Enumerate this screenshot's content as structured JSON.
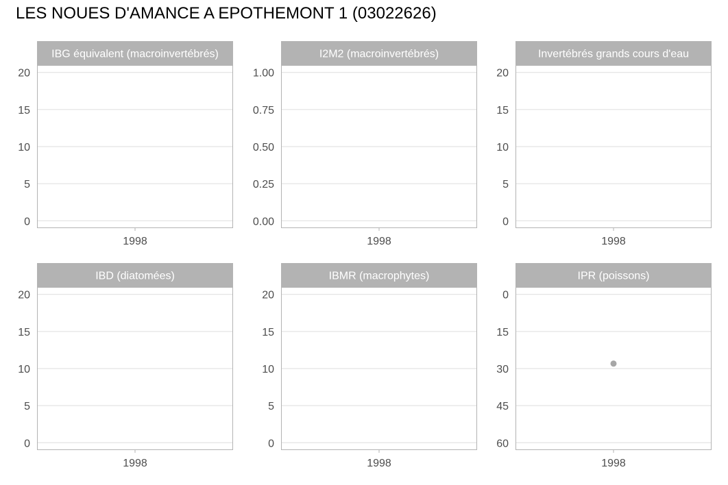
{
  "title": "LES NOUES D'AMANCE A EPOTHEMONT 1 (03022626)",
  "colors": {
    "strip": "#b3b3b3",
    "panel_border": "#b3b3b3",
    "grid": "#dedede",
    "point": "#a6a6a6",
    "tick_text": "#4d4d4d"
  },
  "chart_data": [
    {
      "type": "scatter",
      "title": "IBG équivalent (macroinvertébrés)",
      "xlabel": "",
      "ylabel": "",
      "x_ticks": [
        "1998"
      ],
      "y_ticks": [
        "0",
        "5",
        "10",
        "15",
        "20"
      ],
      "ylim": [
        0,
        20
      ],
      "y_reversed": false,
      "grid": true,
      "series": [
        {
          "x": [],
          "y": []
        }
      ]
    },
    {
      "type": "scatter",
      "title": "I2M2 (macroinvertébrés)",
      "xlabel": "",
      "ylabel": "",
      "x_ticks": [
        "1998"
      ],
      "y_ticks": [
        "0.00",
        "0.25",
        "0.50",
        "0.75",
        "1.00"
      ],
      "ylim": [
        0,
        1
      ],
      "y_reversed": false,
      "grid": true,
      "series": [
        {
          "x": [],
          "y": []
        }
      ]
    },
    {
      "type": "scatter",
      "title": "Invertébrés grands cours d'eau",
      "xlabel": "",
      "ylabel": "",
      "x_ticks": [
        "1998"
      ],
      "y_ticks": [
        "0",
        "5",
        "10",
        "15",
        "20"
      ],
      "ylim": [
        0,
        20
      ],
      "y_reversed": false,
      "grid": true,
      "series": [
        {
          "x": [],
          "y": []
        }
      ]
    },
    {
      "type": "scatter",
      "title": "IBD (diatomées)",
      "xlabel": "",
      "ylabel": "",
      "x_ticks": [
        "1998"
      ],
      "y_ticks": [
        "0",
        "5",
        "10",
        "15",
        "20"
      ],
      "ylim": [
        0,
        20
      ],
      "y_reversed": false,
      "grid": true,
      "series": [
        {
          "x": [],
          "y": []
        }
      ]
    },
    {
      "type": "scatter",
      "title": "IBMR (macrophytes)",
      "xlabel": "",
      "ylabel": "",
      "x_ticks": [
        "1998"
      ],
      "y_ticks": [
        "0",
        "5",
        "10",
        "15",
        "20"
      ],
      "ylim": [
        0,
        20
      ],
      "y_reversed": false,
      "grid": true,
      "series": [
        {
          "x": [],
          "y": []
        }
      ]
    },
    {
      "type": "scatter",
      "title": "IPR (poissons)",
      "xlabel": "",
      "ylabel": "",
      "x_ticks": [
        "1998"
      ],
      "y_ticks": [
        "0",
        "15",
        "30",
        "45",
        "60"
      ],
      "ylim": [
        0,
        60
      ],
      "y_reversed": true,
      "grid": true,
      "series": [
        {
          "x": [
            "1998"
          ],
          "y": [
            28
          ]
        }
      ]
    }
  ]
}
